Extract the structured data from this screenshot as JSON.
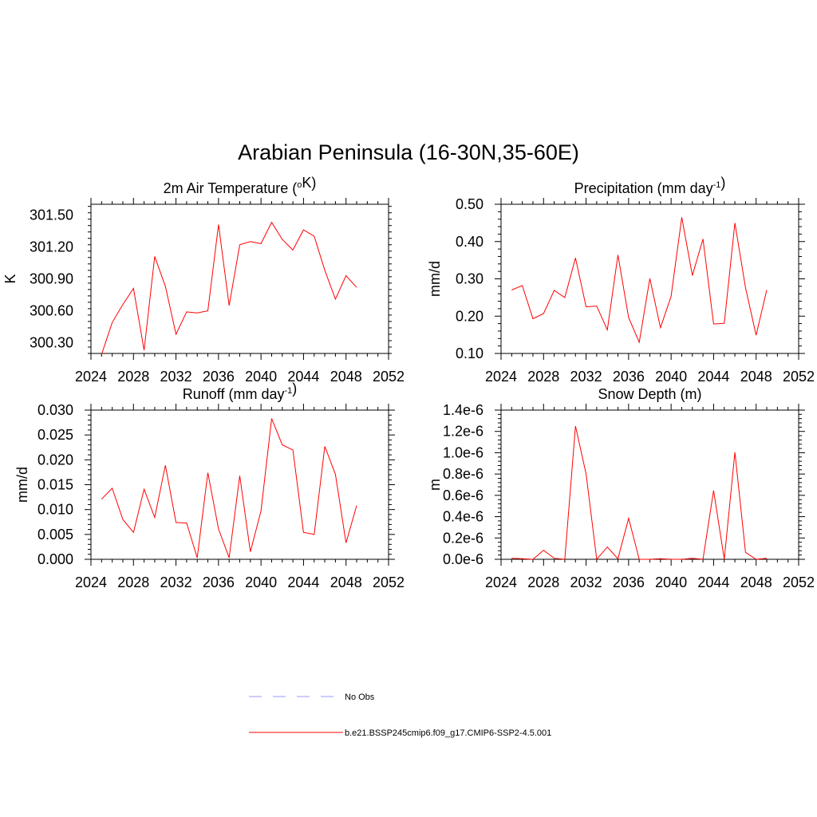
{
  "title": "Arabian Peninsula (16-30N,35-60E)",
  "colors": {
    "series": "#ff0000",
    "obs": "#9999ff",
    "axis": "#000000"
  },
  "legend": [
    {
      "label": "No Obs",
      "style": "dashed",
      "color": "#9999ff"
    },
    {
      "label": "b.e21.BSSP245cmip6.f09_g17.CMIP6-SSP2-4.5.001",
      "style": "solid",
      "color": "#ff0000"
    }
  ],
  "chart_data": [
    {
      "type": "line",
      "title": "2m Air Temperature (oK)",
      "title_parts": [
        [
          "2m Air Temperature (",
          ""
        ],
        [
          "o",
          "sup"
        ],
        [
          "K)",
          ""
        ]
      ],
      "ylabel": "K",
      "xlim": [
        2024,
        2052
      ],
      "ylim": [
        300.2,
        301.6
      ],
      "xticks": [
        "2024",
        "2028",
        "2032",
        "2036",
        "2040",
        "2044",
        "2048",
        "2052"
      ],
      "yticks": [
        300.3,
        300.6,
        300.9,
        301.2,
        301.5
      ],
      "ytick_labels": [
        "300.30",
        "300.60",
        "300.90",
        "301.20",
        "301.50"
      ],
      "grid": false,
      "series": [
        {
          "x": [
            2025,
            2026,
            2027,
            2028,
            2029,
            2030,
            2031,
            2032,
            2033,
            2034,
            2035,
            2036,
            2037,
            2038,
            2039,
            2040,
            2041,
            2042,
            2043,
            2044,
            2045,
            2046,
            2047,
            2048,
            2049
          ],
          "values": [
            300.19,
            300.49,
            300.66,
            300.81,
            300.23,
            301.11,
            300.83,
            300.38,
            300.59,
            300.58,
            300.6,
            301.41,
            300.65,
            301.22,
            301.25,
            301.23,
            301.43,
            301.27,
            301.17,
            301.36,
            301.3,
            300.98,
            300.71,
            300.93,
            300.82
          ]
        }
      ]
    },
    {
      "type": "line",
      "title": "Precipitation (mm day-1)",
      "title_parts": [
        [
          "Precipitation (mm day",
          ""
        ],
        [
          "-1",
          "sup"
        ],
        [
          ")",
          ""
        ]
      ],
      "ylabel": "mm/d",
      "xlim": [
        2024,
        2052
      ],
      "ylim": [
        0.1,
        0.5
      ],
      "xticks": [
        "2024",
        "2028",
        "2032",
        "2036",
        "2040",
        "2044",
        "2048",
        "2052"
      ],
      "yticks": [
        0.1,
        0.2,
        0.3,
        0.4,
        0.5
      ],
      "ytick_labels": [
        "0.10",
        "0.20",
        "0.30",
        "0.40",
        "0.50"
      ],
      "grid": false,
      "series": [
        {
          "x": [
            2025,
            2026,
            2027,
            2028,
            2029,
            2030,
            2031,
            2032,
            2033,
            2034,
            2035,
            2036,
            2037,
            2038,
            2039,
            2040,
            2041,
            2042,
            2043,
            2044,
            2045,
            2046,
            2047,
            2048,
            2049
          ],
          "values": [
            0.27,
            0.282,
            0.193,
            0.207,
            0.269,
            0.25,
            0.356,
            0.225,
            0.227,
            0.163,
            0.364,
            0.196,
            0.13,
            0.301,
            0.169,
            0.253,
            0.465,
            0.309,
            0.407,
            0.179,
            0.181,
            0.45,
            0.276,
            0.149,
            0.27
          ]
        }
      ]
    },
    {
      "type": "line",
      "title": "Runoff (mm day-1)",
      "title_parts": [
        [
          "Runoff (mm day",
          ""
        ],
        [
          "-1",
          "sup"
        ],
        [
          ")",
          ""
        ]
      ],
      "ylabel": "mm/d",
      "xlim": [
        2024,
        2052
      ],
      "ylim": [
        0.0,
        0.03
      ],
      "xticks": [
        "2024",
        "2028",
        "2032",
        "2036",
        "2040",
        "2044",
        "2048",
        "2052"
      ],
      "yticks": [
        0.0,
        0.005,
        0.01,
        0.015,
        0.02,
        0.025,
        0.03
      ],
      "ytick_labels": [
        "0.000",
        "0.005",
        "0.010",
        "0.015",
        "0.020",
        "0.025",
        "0.030"
      ],
      "grid": false,
      "series": [
        {
          "x": [
            2025,
            2026,
            2027,
            2028,
            2029,
            2030,
            2031,
            2032,
            2033,
            2034,
            2035,
            2036,
            2037,
            2038,
            2039,
            2040,
            2041,
            2042,
            2043,
            2044,
            2045,
            2046,
            2047,
            2048,
            2049
          ],
          "values": [
            0.0121,
            0.0143,
            0.008,
            0.0054,
            0.0141,
            0.0084,
            0.0189,
            0.0074,
            0.0073,
            0.0003,
            0.0174,
            0.0061,
            0.0003,
            0.0168,
            0.0015,
            0.0097,
            0.0283,
            0.023,
            0.022,
            0.0054,
            0.005,
            0.0227,
            0.0171,
            0.0033,
            0.0108
          ]
        }
      ]
    },
    {
      "type": "line",
      "title": "Snow Depth (m)",
      "title_parts": [
        [
          "Snow Depth (m)",
          ""
        ]
      ],
      "ylabel": "m",
      "xlim": [
        2024,
        2052
      ],
      "ylim": [
        0.0,
        1.4e-06
      ],
      "xticks": [
        "2024",
        "2028",
        "2032",
        "2036",
        "2040",
        "2044",
        "2048",
        "2052"
      ],
      "yticks": [
        0,
        2e-07,
        4e-07,
        6e-07,
        8e-07,
        1e-06,
        1.2e-06,
        1.4e-06
      ],
      "ytick_labels": [
        "0.0e-6",
        "0.2e-6",
        "0.4e-6",
        "0.6e-6",
        "0.8e-6",
        "1.0e-6",
        "1.2e-6",
        "1.4e-6"
      ],
      "grid": false,
      "series": [
        {
          "x": [
            2025,
            2026,
            2027,
            2028,
            2029,
            2030,
            2031,
            2032,
            2033,
            2034,
            2035,
            2036,
            2037,
            2038,
            2039,
            2040,
            2041,
            2042,
            2043,
            2044,
            2045,
            2046,
            2047,
            2048,
            2049
          ],
          "values": [
            1e-08,
            5e-09,
            0,
            8.5e-08,
            1e-08,
            0,
            1.25e-06,
            8e-07,
            0,
            1.15e-07,
            5e-09,
            3.85e-07,
            0,
            0,
            5e-09,
            0,
            0,
            1e-08,
            0,
            6.45e-07,
            0,
            1.005e-06,
            6.5e-08,
            0,
            1e-08
          ]
        }
      ]
    }
  ]
}
